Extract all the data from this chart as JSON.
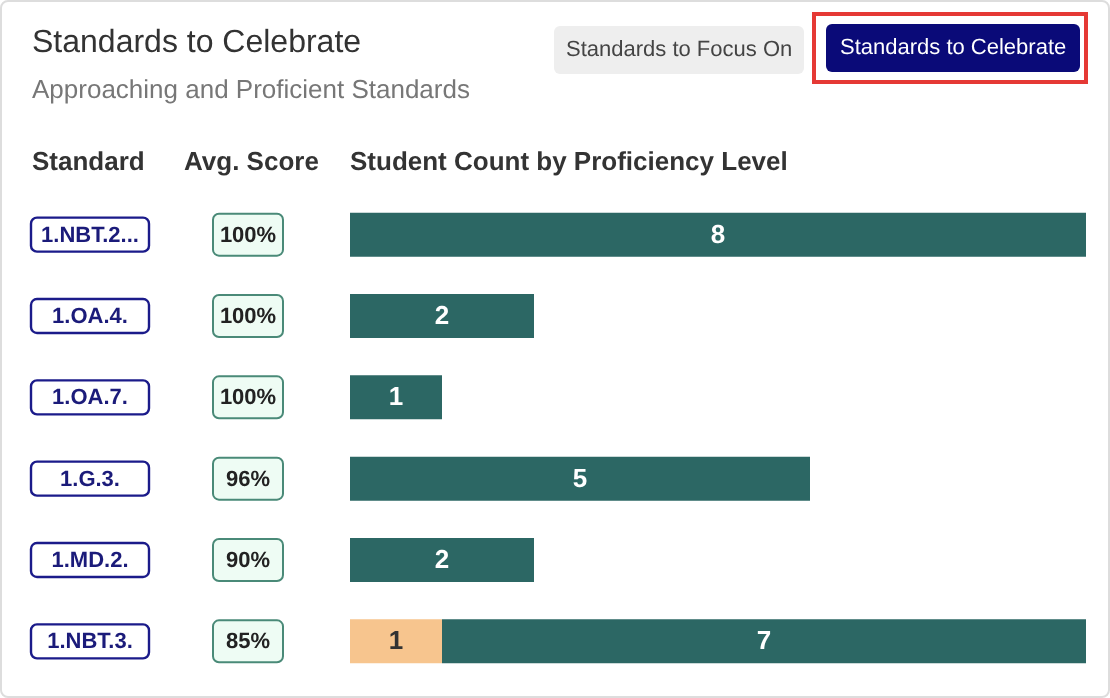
{
  "chart_data": {
    "type": "bar",
    "orientation": "horizontal",
    "stacked": true,
    "title": "Standards to Celebrate",
    "subtitle": "Approaching and Proficient Standards",
    "ylabel": "Standard",
    "xlabel": "Student Count by Proficiency Level",
    "categories": [
      "1.NBT.2...",
      "1.OA.4.",
      "1.OA.7.",
      "1.G.3.",
      "1.MD.2.",
      "1.NBT.3."
    ],
    "series": [
      {
        "color": "#f7c58e",
        "values": [
          null,
          null,
          null,
          null,
          null,
          1
        ]
      },
      {
        "color": "#2c6764",
        "values": [
          8,
          2,
          1,
          5,
          2,
          7
        ]
      }
    ],
    "xlim": [
      0,
      8
    ],
    "tick_labels": "y",
    "data_labels": true,
    "annotations": [
      "Standards to Focus On",
      "Standards to Celebrate",
      "Avg. Score",
      "100%",
      "100%",
      "100%",
      "96%",
      "90%",
      "85%"
    ]
  }
}
